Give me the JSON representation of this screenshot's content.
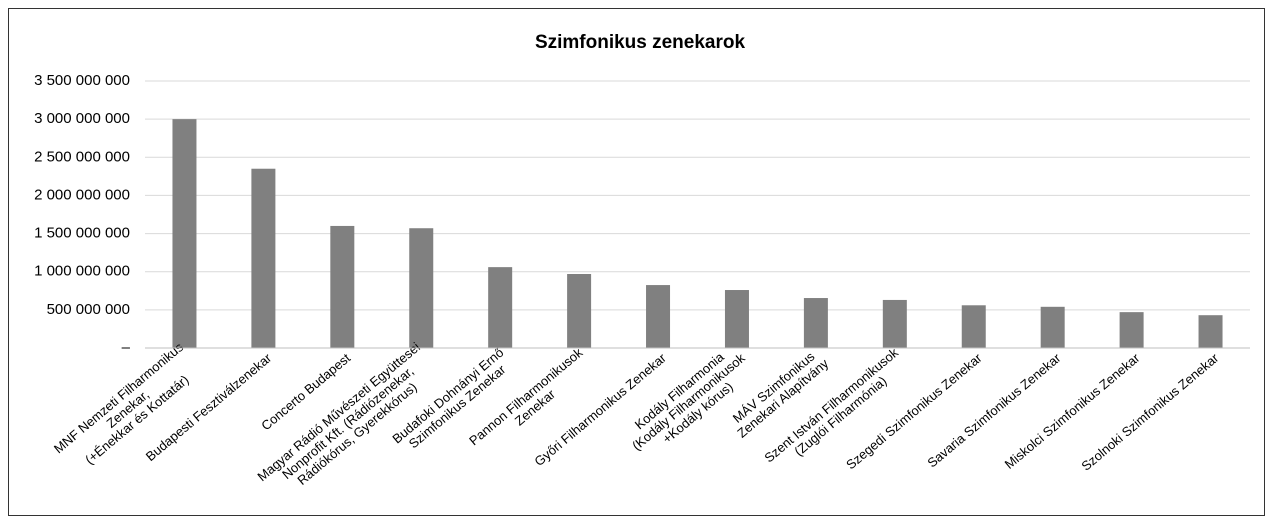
{
  "chart_data": {
    "type": "bar",
    "title": "Szimfonikus zenekarok",
    "categories": [
      "MNF Nemzeti Filharmonikus\nZenekar,\n(+Énekkar és Kottatár)",
      "Budapesti Fesztiválzenekar",
      "Concerto Budapest",
      "Magyar Rádió Művészeti Együttesei\nNonprofit Kft. (Rádiózenekar,\nRádiókórus, Gyerekkórus)",
      "Budafoki Dohnányi Ernő\nSzimfonikus Zenekar",
      "Pannon Filharmonikusok\nZenekar",
      "Győri Filharmonikus Zenekar",
      "Kodály Filharmonia\n(Kodály Filharmonikusok\n+Kodály kórus)",
      "MÁV Szimfonikus\nZenekari Alapítvány",
      "Szent István Filharmonikusok\n(Zuglói Filharmónia)",
      "Szegedi Szimfonikus Zenekar",
      "Savaria Szimfonikus Zenekar",
      "Miskolci Szimfonikus Zenekar",
      "Szolnoki Szimfonikus Zenekar"
    ],
    "values": [
      3000000000,
      2350000000,
      1600000000,
      1570000000,
      1060000000,
      970000000,
      825000000,
      760000000,
      655000000,
      630000000,
      560000000,
      540000000,
      470000000,
      430000000
    ],
    "color": "#808080",
    "ylim": [
      0,
      3500000000
    ],
    "yticks": [
      {
        "value": 0,
        "label": "–"
      },
      {
        "value": 500000000,
        "label": "500 000 000"
      },
      {
        "value": 1000000000,
        "label": "1 000 000 000"
      },
      {
        "value": 1500000000,
        "label": "1 500 000 000"
      },
      {
        "value": 2000000000,
        "label": "2 000 000 000"
      },
      {
        "value": 2500000000,
        "label": "2 500 000 000"
      },
      {
        "value": 3000000000,
        "label": "3 000 000 000"
      },
      {
        "value": 3500000000,
        "label": "3 500 000 000"
      }
    ],
    "grid": true
  }
}
